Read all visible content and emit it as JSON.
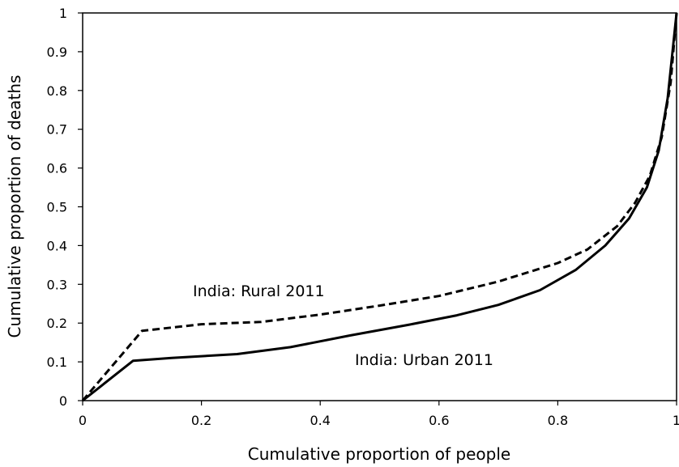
{
  "chart_data": {
    "type": "line",
    "xlabel": "Cumulative proportion of people",
    "ylabel": "Cumulative proportion of deaths",
    "xlim": [
      0,
      1
    ],
    "ylim": [
      0,
      1
    ],
    "x_ticks": [
      "0",
      "0.2",
      "0.4",
      "0.6",
      "0.8",
      "1"
    ],
    "y_ticks": [
      "0",
      "0.1",
      "0.2",
      "0.3",
      "0.4",
      "0.5",
      "0.6",
      "0.7",
      "0.8",
      "0.9",
      "1"
    ],
    "grid": false,
    "series": [
      {
        "name": "India: Rural 2011",
        "style": "dashed",
        "color": "#000000",
        "points": [
          [
            0,
            0
          ],
          [
            0.1,
            0.18
          ],
          [
            0.2,
            0.197
          ],
          [
            0.3,
            0.203
          ],
          [
            0.4,
            0.222
          ],
          [
            0.5,
            0.245
          ],
          [
            0.6,
            0.27
          ],
          [
            0.7,
            0.307
          ],
          [
            0.8,
            0.355
          ],
          [
            0.85,
            0.39
          ],
          [
            0.9,
            0.45
          ],
          [
            0.93,
            0.51
          ],
          [
            0.955,
            0.58
          ],
          [
            0.975,
            0.68
          ],
          [
            0.99,
            0.82
          ],
          [
            1,
            1
          ]
        ]
      },
      {
        "name": "India: Urban 2011",
        "style": "solid",
        "color": "#000000",
        "points": [
          [
            0,
            0
          ],
          [
            0.085,
            0.103
          ],
          [
            0.15,
            0.11
          ],
          [
            0.26,
            0.12
          ],
          [
            0.35,
            0.138
          ],
          [
            0.45,
            0.168
          ],
          [
            0.55,
            0.196
          ],
          [
            0.63,
            0.22
          ],
          [
            0.7,
            0.247
          ],
          [
            0.77,
            0.285
          ],
          [
            0.83,
            0.337
          ],
          [
            0.88,
            0.4
          ],
          [
            0.92,
            0.47
          ],
          [
            0.95,
            0.55
          ],
          [
            0.97,
            0.645
          ],
          [
            0.985,
            0.78
          ],
          [
            1,
            1
          ]
        ]
      }
    ],
    "annotations": [
      "India: Rural 2011",
      "India: Urban 2011"
    ]
  }
}
